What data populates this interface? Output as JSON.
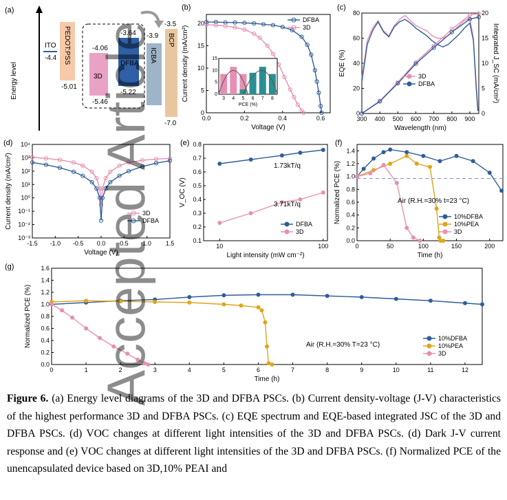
{
  "watermark": "Accepted Article",
  "panels": {
    "a": {
      "label": "(a)",
      "ylabel": "Energy level",
      "levels": {
        "ito_name": "ITO",
        "ito": "-4.4",
        "pedot_name": "PEDOT:PSS",
        "pedot": "-5.01",
        "threeD_name": "3D",
        "threeD_top": "-4.06",
        "threeD_bottom": "-5.46",
        "dfba_name": "DFBA",
        "dfba_top": "-3.64",
        "dfba_bottom": "-5.22",
        "icba_name": "ICBA",
        "icba_top": "-3.9",
        "bcp_name": "BCP",
        "bcp_top": "-3.5",
        "bcp_bottom": "-7.0"
      }
    },
    "b": {
      "label": "(b)",
      "inset_xlabel": "PCE (%)"
    },
    "c": {
      "label": "(c)"
    },
    "d": {
      "label": "(d)"
    },
    "e": {
      "label": "(e)",
      "annotations": [
        "1.73kT/q",
        "3.71kT/q"
      ]
    },
    "f": {
      "label": "(f)",
      "annotation": "Air (R.H.=30% t=23 °C)"
    },
    "g": {
      "label": "(g)",
      "annotation": "Air (R.H.=30% T=23 °C)"
    }
  },
  "colors": {
    "dfba": "#2f5d9a",
    "threeD": "#e78fb3",
    "pea": "#e0a41a"
  },
  "chart_data": [
    {
      "panel": "b",
      "type": "line",
      "xlabel": "Voltage (V)",
      "ylabel": "Current density (mA/cm²)",
      "xlim": [
        0.0,
        0.65
      ],
      "ylim": [
        0,
        22
      ],
      "xticks": [
        0.0,
        0.2,
        0.4,
        0.6
      ],
      "yticks": [
        0,
        5,
        10,
        15,
        20
      ],
      "legend": "top-right",
      "series": [
        {
          "name": "DFBA",
          "x": [
            0,
            0.05,
            0.1,
            0.15,
            0.2,
            0.25,
            0.3,
            0.35,
            0.4,
            0.45,
            0.5,
            0.53,
            0.55,
            0.57,
            0.58,
            0.59,
            0.6,
            0.605
          ],
          "y": [
            20.3,
            20.3,
            20.2,
            20.2,
            20.1,
            20.0,
            19.8,
            19.6,
            19.2,
            18.5,
            17.0,
            15.2,
            13.0,
            9.5,
            7.0,
            4.5,
            1.5,
            0
          ]
        },
        {
          "name": "3D",
          "x": [
            0,
            0.05,
            0.1,
            0.15,
            0.2,
            0.25,
            0.28,
            0.32,
            0.35,
            0.38,
            0.41,
            0.44,
            0.46,
            0.48,
            0.5,
            0.51
          ],
          "y": [
            19.7,
            19.6,
            19.4,
            19.1,
            18.6,
            17.7,
            16.8,
            15.0,
            13.2,
            10.8,
            8.0,
            5.2,
            3.5,
            1.8,
            0.5,
            0
          ]
        }
      ],
      "inset": {
        "type": "bar",
        "xlabel": "PCE (%)",
        "xticks": [
          3,
          4,
          5,
          6,
          7,
          8
        ],
        "yticks": [
          0,
          5,
          10,
          15
        ],
        "ylim": [
          0,
          15
        ],
        "bars_3D": [
          {
            "x": 3.5,
            "y": 8.5
          },
          {
            "x": 4.5,
            "y": 11.5
          },
          {
            "x": 5.5,
            "y": 8.5
          }
        ],
        "bars_DFBA": [
          {
            "x": 5.5,
            "y": 2
          },
          {
            "x": 6.5,
            "y": 9
          },
          {
            "x": 7.5,
            "y": 11.5
          },
          {
            "x": 8.5,
            "y": 8.5
          }
        ]
      }
    },
    {
      "panel": "c",
      "type": "line",
      "xlabel": "Wavelength (nm)",
      "ylabel": "EQE (%)",
      "y2label": "Integrated J_SC (mA/cm²)",
      "xlim": [
        300,
        950
      ],
      "ylim": [
        0,
        80
      ],
      "y2lim": [
        0,
        20
      ],
      "xticks": [
        300,
        400,
        500,
        600,
        700,
        800,
        900
      ],
      "yticks": [
        0,
        20,
        40,
        60,
        80
      ],
      "y2ticks": [
        0,
        5,
        10,
        15,
        20
      ],
      "legend": "lower-middle",
      "series": [
        {
          "name": "3D",
          "x": [
            300,
            330,
            360,
            390,
            420,
            450,
            480,
            510,
            540,
            570,
            600,
            630,
            660,
            690,
            720,
            750,
            780,
            810,
            840,
            870,
            900,
            920,
            935,
            945
          ],
          "y": [
            28,
            58,
            68,
            74,
            66,
            62,
            70,
            75,
            78,
            74,
            70,
            68,
            66,
            62,
            60,
            60,
            62,
            66,
            70,
            74,
            76,
            60,
            25,
            3
          ]
        },
        {
          "name": "DFBA",
          "x": [
            300,
            330,
            360,
            390,
            420,
            450,
            480,
            510,
            540,
            570,
            600,
            630,
            660,
            690,
            720,
            750,
            780,
            810,
            840,
            870,
            900,
            920,
            935,
            945
          ],
          "y": [
            25,
            55,
            66,
            73,
            65,
            61,
            69,
            73,
            75,
            72,
            68,
            65,
            62,
            58,
            55,
            53,
            55,
            59,
            63,
            68,
            72,
            58,
            22,
            2
          ]
        },
        {
          "name": "3D integrated",
          "x": [
            300,
            400,
            500,
            600,
            700,
            800,
            900,
            950
          ],
          "y": [
            0,
            2.5,
            6.2,
            10.2,
            13.5,
            16.8,
            19.6,
            19.9
          ]
        },
        {
          "name": "DFBA integrated",
          "x": [
            300,
            400,
            500,
            600,
            700,
            800,
            900,
            950
          ],
          "y": [
            0,
            2.4,
            6.0,
            9.9,
            13.1,
            16.2,
            18.8,
            19.2
          ]
        }
      ]
    },
    {
      "panel": "d",
      "type": "line",
      "yscale": "log",
      "xlabel": "Voltage (V)",
      "ylabel": "Current density (mA/cm²)",
      "xlim": [
        -1.5,
        1.5
      ],
      "ylim_exp": [
        -3,
        4
      ],
      "xticks": [
        -1.5,
        -1.0,
        -0.5,
        0.0,
        0.5,
        1.0,
        1.5
      ],
      "ytick_labels": [
        "10⁻³",
        "10⁻²",
        "10⁻¹",
        "10⁰",
        "10¹",
        "10²",
        "10³",
        "10⁴"
      ],
      "legend": "lower-right",
      "series": [
        {
          "name": "3D",
          "x": [
            -1.5,
            -1.2,
            -0.9,
            -0.6,
            -0.4,
            -0.2,
            -0.1,
            -0.03,
            0,
            0.03,
            0.1,
            0.2,
            0.4,
            0.6,
            0.9,
            1.2,
            1.5
          ],
          "y": [
            1100,
            900,
            700,
            450,
            260,
            90,
            30,
            5,
            0.3,
            5,
            30,
            90,
            260,
            450,
            650,
            800,
            900
          ]
        },
        {
          "name": "DFBA",
          "x": [
            -1.5,
            -1.2,
            -0.9,
            -0.6,
            -0.4,
            -0.2,
            -0.1,
            -0.03,
            0,
            0.03,
            0.1,
            0.2,
            0.4,
            0.6,
            0.9,
            1.2,
            1.5
          ],
          "y": [
            450,
            300,
            180,
            90,
            45,
            15,
            5,
            1,
            0.02,
            1,
            5,
            15,
            45,
            100,
            220,
            400,
            600
          ]
        }
      ]
    },
    {
      "panel": "e",
      "type": "scatter",
      "xscale": "log",
      "xlabel": "Light intensity (mW cm⁻²)",
      "ylabel": "V_OC (V)",
      "xlim": [
        7,
        110
      ],
      "ylim": [
        0.1,
        0.8
      ],
      "xticks": [
        10,
        100
      ],
      "yticks": [
        0.1,
        0.2,
        0.3,
        0.4,
        0.5,
        0.6,
        0.7,
        0.8
      ],
      "legend": "lower-right",
      "series": [
        {
          "name": "DFBA",
          "x": [
            10,
            20,
            40,
            60,
            100
          ],
          "y": [
            0.66,
            0.69,
            0.72,
            0.74,
            0.76
          ]
        },
        {
          "name": "3D",
          "x": [
            10,
            20,
            40,
            60,
            100
          ],
          "y": [
            0.23,
            0.3,
            0.38,
            0.4,
            0.45
          ]
        }
      ]
    },
    {
      "panel": "f",
      "type": "line",
      "xlabel": "Time (h)",
      "ylabel": "Normalized PCE (%)",
      "xlim": [
        0,
        220
      ],
      "ylim": [
        0,
        1.5
      ],
      "xticks": [
        0,
        50,
        100,
        150,
        200
      ],
      "yticks": [
        0.0,
        0.2,
        0.4,
        0.6,
        0.8,
        1.0,
        1.2,
        1.4
      ],
      "legend": "lower-right",
      "series": [
        {
          "name": "10%DFBA",
          "x": [
            0,
            10,
            25,
            40,
            50,
            75,
            100,
            125,
            150,
            175,
            200,
            218
          ],
          "y": [
            1.0,
            1.12,
            1.28,
            1.38,
            1.42,
            1.38,
            1.32,
            1.24,
            1.32,
            1.24,
            1.06,
            0.78
          ]
        },
        {
          "name": "10%PEA",
          "x": [
            0,
            25,
            50,
            75,
            90,
            110,
            120,
            124,
            126,
            130
          ],
          "y": [
            1.0,
            1.1,
            1.2,
            1.32,
            1.2,
            1.15,
            0.5,
            0.05,
            0.0,
            0.0
          ]
        },
        {
          "name": "3D",
          "x": [
            0,
            20,
            40,
            60,
            75,
            85,
            95
          ],
          "y": [
            1.0,
            1.05,
            1.18,
            0.9,
            0.2,
            0.05,
            0.0
          ]
        }
      ]
    },
    {
      "panel": "g",
      "type": "line",
      "xlabel": "Time (h)",
      "ylabel": "Normalized PCE (%)",
      "xlim": [
        0,
        12.5
      ],
      "ylim": [
        0,
        1.6
      ],
      "xticks": [
        0,
        1,
        2,
        3,
        4,
        5,
        6,
        7,
        8,
        9,
        10,
        11,
        12
      ],
      "yticks": [
        0.0,
        0.2,
        0.4,
        0.6,
        0.8,
        1.0,
        1.2,
        1.4,
        1.6
      ],
      "legend": "lower-right",
      "series": [
        {
          "name": "10%DFBA",
          "x": [
            0,
            1,
            2,
            3,
            4,
            5,
            6,
            7,
            8,
            9,
            10,
            11,
            12,
            12.5
          ],
          "y": [
            1.0,
            1.03,
            1.06,
            1.08,
            1.12,
            1.15,
            1.16,
            1.16,
            1.14,
            1.12,
            1.09,
            1.06,
            1.02,
            1.0
          ]
        },
        {
          "name": "10%PEA",
          "x": [
            0,
            1,
            2,
            3,
            4,
            5,
            5.5,
            6,
            6.1,
            6.2,
            6.25,
            6.3,
            6.4
          ],
          "y": [
            1.04,
            1.06,
            1.05,
            1.04,
            1.03,
            1.0,
            0.98,
            0.95,
            0.9,
            0.7,
            0.3,
            0.02,
            0.0
          ]
        },
        {
          "name": "3D",
          "x": [
            0,
            0.3,
            0.6,
            1.0,
            1.4,
            1.8,
            2.2,
            2.5,
            2.7,
            2.8
          ],
          "y": [
            1.0,
            0.9,
            0.78,
            0.6,
            0.44,
            0.3,
            0.18,
            0.08,
            0.02,
            0.0
          ]
        }
      ]
    }
  ],
  "caption": [
    {
      "bold": "Figure 6.",
      "text": " (a) Energy level diagrams of the 3D and DFBA PSCs. (b) Current density-voltage (J-V) characteristics of the highest performance 3D and DFBA PSCs. (c) EQE spectrum and EQE-based integrated JSC of the 3D and DFBA PSCs. (d) VOC changes at different light intensities of the 3D and DFBA PSCs. (d) Dark J-V current response and (e) VOC changes at different light intensities of the 3D and DFBA PSCs. (f) Normalized PCE of the unencapsulated device based on 3D,10% PEAI and"
    }
  ]
}
